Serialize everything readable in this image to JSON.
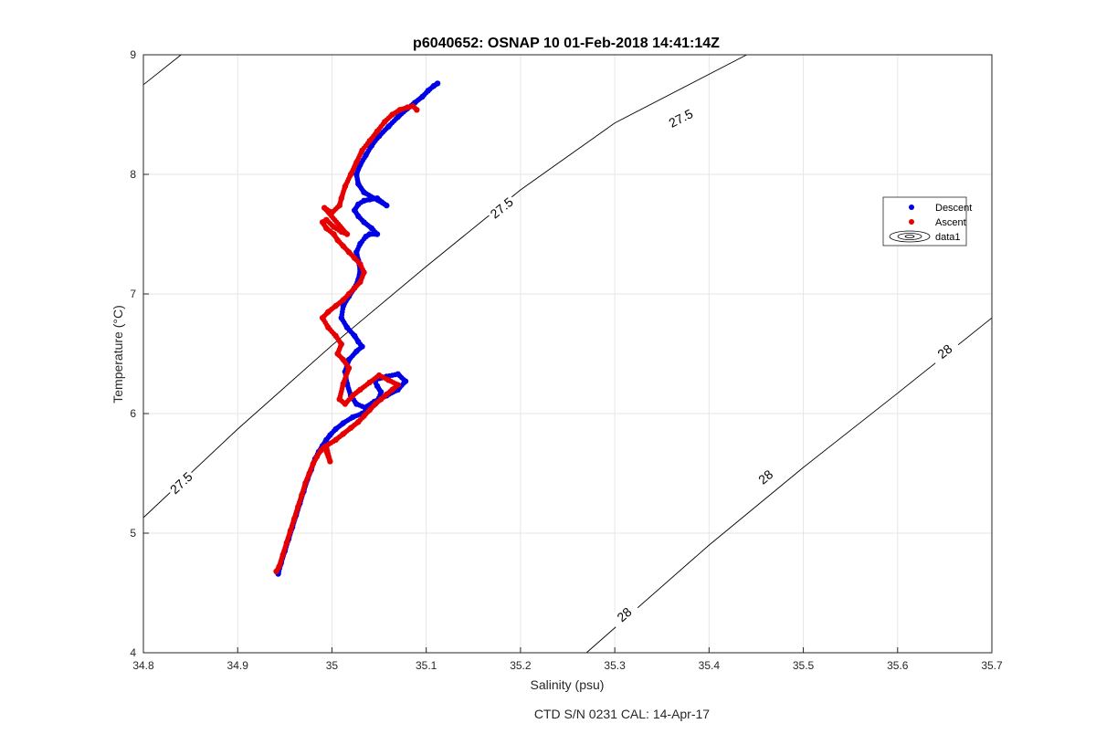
{
  "chart_data": {
    "type": "scatter",
    "title": "p6040652: OSNAP 10 01-Feb-2018 14:41:14Z",
    "xlabel": "Salinity (psu)",
    "ylabel": "Temperature (°C)",
    "footer": "CTD S/N 0231  CAL: 14-Apr-17",
    "xlim": [
      34.8,
      35.7
    ],
    "ylim": [
      4,
      9
    ],
    "xticks": [
      "34.8",
      "34.9",
      "35",
      "35.1",
      "35.2",
      "35.3",
      "35.4",
      "35.5",
      "35.6",
      "35.7"
    ],
    "yticks": [
      "4",
      "5",
      "6",
      "7",
      "8",
      "9"
    ],
    "grid": true,
    "legend_position": "right",
    "legend": [
      "Descent",
      "Ascent",
      "data1"
    ],
    "series": [
      {
        "name": "Descent",
        "color": "#0000e6",
        "x": [
          34.943,
          34.946,
          34.95,
          34.954,
          34.958,
          34.962,
          34.966,
          34.97,
          34.974,
          34.978,
          34.982,
          34.986,
          34.99,
          34.994,
          34.998,
          35.004,
          35.012,
          35.022,
          35.032,
          35.04,
          35.046,
          35.05,
          35.052,
          35.048,
          35.045,
          35.058,
          35.07,
          35.078,
          35.07,
          35.058,
          35.045,
          35.035,
          35.026,
          35.02,
          35.016,
          35.014,
          35.018,
          35.026,
          35.032,
          35.028,
          35.024,
          35.016,
          35.01,
          35.012,
          35.018,
          35.024,
          35.028,
          35.03,
          35.028,
          35.026,
          35.03,
          35.036,
          35.04,
          35.048,
          35.042,
          35.034,
          35.028,
          35.024,
          35.028,
          35.034,
          35.04,
          35.048,
          35.058,
          35.034,
          35.028,
          35.026,
          35.03,
          35.036,
          35.042,
          35.05,
          35.06,
          35.07,
          35.08,
          35.088,
          35.096,
          35.102,
          35.108,
          35.112
        ],
        "y": [
          4.66,
          4.75,
          4.85,
          4.95,
          5.05,
          5.15,
          5.25,
          5.35,
          5.45,
          5.53,
          5.62,
          5.68,
          5.73,
          5.78,
          5.82,
          5.87,
          5.92,
          5.97,
          6.0,
          6.04,
          6.08,
          6.13,
          6.18,
          6.23,
          6.28,
          6.31,
          6.33,
          6.27,
          6.2,
          6.15,
          6.1,
          6.05,
          6.08,
          6.15,
          6.25,
          6.35,
          6.45,
          6.52,
          6.56,
          6.6,
          6.65,
          6.72,
          6.8,
          6.9,
          6.98,
          7.05,
          7.12,
          7.2,
          7.28,
          7.35,
          7.42,
          7.48,
          7.5,
          7.5,
          7.55,
          7.6,
          7.65,
          7.7,
          7.75,
          7.78,
          7.79,
          7.8,
          7.74,
          7.85,
          7.92,
          8.0,
          8.08,
          8.16,
          8.24,
          8.32,
          8.4,
          8.48,
          8.55,
          8.6,
          8.65,
          8.7,
          8.74,
          8.76
        ]
      },
      {
        "name": "Ascent",
        "color": "#e60000",
        "x": [
          34.941,
          34.944,
          34.948,
          34.952,
          34.956,
          34.96,
          34.964,
          34.968,
          34.972,
          34.976,
          34.98,
          34.984,
          34.988,
          34.992,
          34.998,
          34.994,
          35.004,
          35.012,
          35.02,
          35.028,
          35.034,
          35.04,
          35.046,
          35.052,
          35.058,
          35.064,
          35.07,
          35.06,
          35.05,
          35.04,
          35.03,
          35.022,
          35.014,
          35.008,
          35.012,
          35.018,
          35.012,
          35.006,
          35.01,
          35.004,
          34.996,
          34.99,
          34.996,
          35.004,
          35.012,
          35.018,
          35.024,
          35.03,
          35.034,
          35.03,
          35.024,
          35.018,
          35.012,
          35.006,
          35.002,
          34.994,
          34.99,
          34.994,
          35.002,
          35.01,
          35.016,
          34.992,
          35.0,
          35.008,
          35.01,
          35.014,
          35.02,
          35.026,
          35.032,
          35.04,
          35.048,
          35.056,
          35.064,
          35.072,
          35.08,
          35.086,
          35.09
        ],
        "y": [
          4.68,
          4.72,
          4.82,
          4.92,
          5.02,
          5.12,
          5.22,
          5.32,
          5.42,
          5.5,
          5.58,
          5.64,
          5.69,
          5.72,
          5.6,
          5.73,
          5.78,
          5.83,
          5.88,
          5.93,
          5.98,
          6.03,
          6.08,
          6.12,
          6.16,
          6.2,
          6.24,
          6.28,
          6.32,
          6.26,
          6.2,
          6.15,
          6.08,
          6.12,
          6.25,
          6.38,
          6.45,
          6.5,
          6.58,
          6.65,
          6.72,
          6.8,
          6.85,
          6.9,
          6.95,
          7.0,
          7.05,
          7.1,
          7.18,
          7.25,
          7.3,
          7.35,
          7.4,
          7.45,
          7.5,
          7.55,
          7.6,
          7.62,
          7.56,
          7.52,
          7.5,
          7.72,
          7.68,
          7.74,
          7.8,
          7.9,
          8.0,
          8.1,
          8.2,
          8.28,
          8.36,
          8.44,
          8.5,
          8.54,
          8.56,
          8.57,
          8.54
        ]
      }
    ],
    "contours": [
      {
        "label": "27.5",
        "color": "#000000",
        "points": [
          [
            34.8,
            5.13
          ],
          [
            34.9,
            5.87
          ],
          [
            35.0,
            6.57
          ],
          [
            35.1,
            7.23
          ],
          [
            35.2,
            7.87
          ],
          [
            35.3,
            8.43
          ],
          [
            35.44,
            9.0
          ]
        ],
        "label_positions": [
          [
            34.84,
            5.42
          ],
          [
            35.18,
            7.72
          ],
          [
            35.37,
            8.47
          ]
        ],
        "label_extra": [
          [
            35.01,
            6.44
          ]
        ]
      },
      {
        "label": "27.5",
        "color": "#000000",
        "points": [
          [
            34.8,
            8.75
          ],
          [
            34.84,
            9.0
          ]
        ],
        "label_positions": []
      },
      {
        "label": "28",
        "color": "#000000",
        "points": [
          [
            35.27,
            4.0
          ],
          [
            35.4,
            4.9
          ],
          [
            35.5,
            5.55
          ],
          [
            35.6,
            6.17
          ],
          [
            35.7,
            6.8
          ]
        ],
        "label_positions": [
          [
            35.31,
            4.32
          ],
          [
            35.46,
            5.47
          ],
          [
            35.65,
            6.52
          ]
        ]
      }
    ]
  }
}
